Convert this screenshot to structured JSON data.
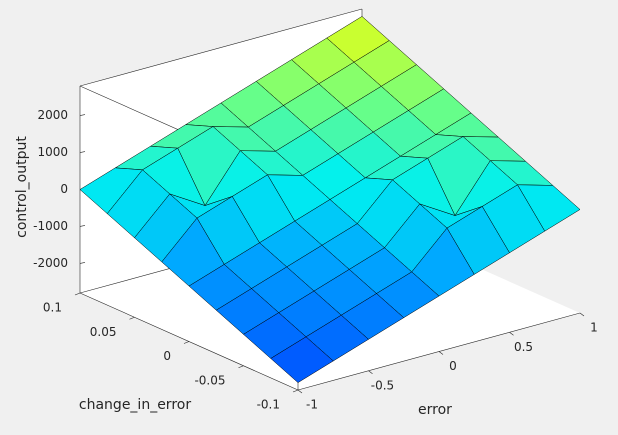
{
  "chart_data": {
    "type": "surface",
    "xlabel": "error",
    "ylabel": "change_in_error",
    "zlabel": "control_output",
    "x": [
      -1,
      -0.75,
      -0.5,
      -0.25,
      0,
      0.25,
      0.5,
      0.75,
      1
    ],
    "y": [
      -0.1,
      -0.075,
      -0.05,
      -0.025,
      0,
      0.025,
      0.05,
      0.075,
      0.1
    ],
    "z": [
      [
        -2600,
        -2275,
        -1950,
        -1625,
        -1300,
        -975,
        -650,
        -325,
        0
      ],
      [
        -2275,
        -1950,
        -1625,
        -1300,
        -975,
        -50,
        275,
        600,
        325
      ],
      [
        -1950,
        -1625,
        -1300,
        -975,
        -650,
        275,
        -300,
        925,
        650
      ],
      [
        -1625,
        -1300,
        -975,
        -650,
        -325,
        600,
        925,
        1250,
        975
      ],
      [
        -1300,
        -975,
        -650,
        -325,
        0,
        325,
        650,
        975,
        1300
      ],
      [
        -975,
        -50,
        275,
        600,
        325,
        650,
        975,
        1300,
        1625
      ],
      [
        -650,
        275,
        -300,
        925,
        650,
        975,
        1300,
        1625,
        1950
      ],
      [
        -325,
        600,
        925,
        1250,
        975,
        1300,
        1625,
        1950,
        2275
      ],
      [
        0,
        325,
        650,
        975,
        1300,
        1625,
        1950,
        2275,
        2600
      ]
    ],
    "xlim": [
      -1,
      1
    ],
    "ylim": [
      -0.1,
      0.1
    ],
    "zlim": [
      -2800,
      2800
    ],
    "xticks": [
      -1,
      -0.5,
      0,
      0.5,
      1
    ],
    "yticks": [
      -0.1,
      -0.05,
      0,
      0.05,
      0.1
    ],
    "zticks": [
      -2000,
      -1000,
      0,
      1000,
      2000
    ]
  }
}
